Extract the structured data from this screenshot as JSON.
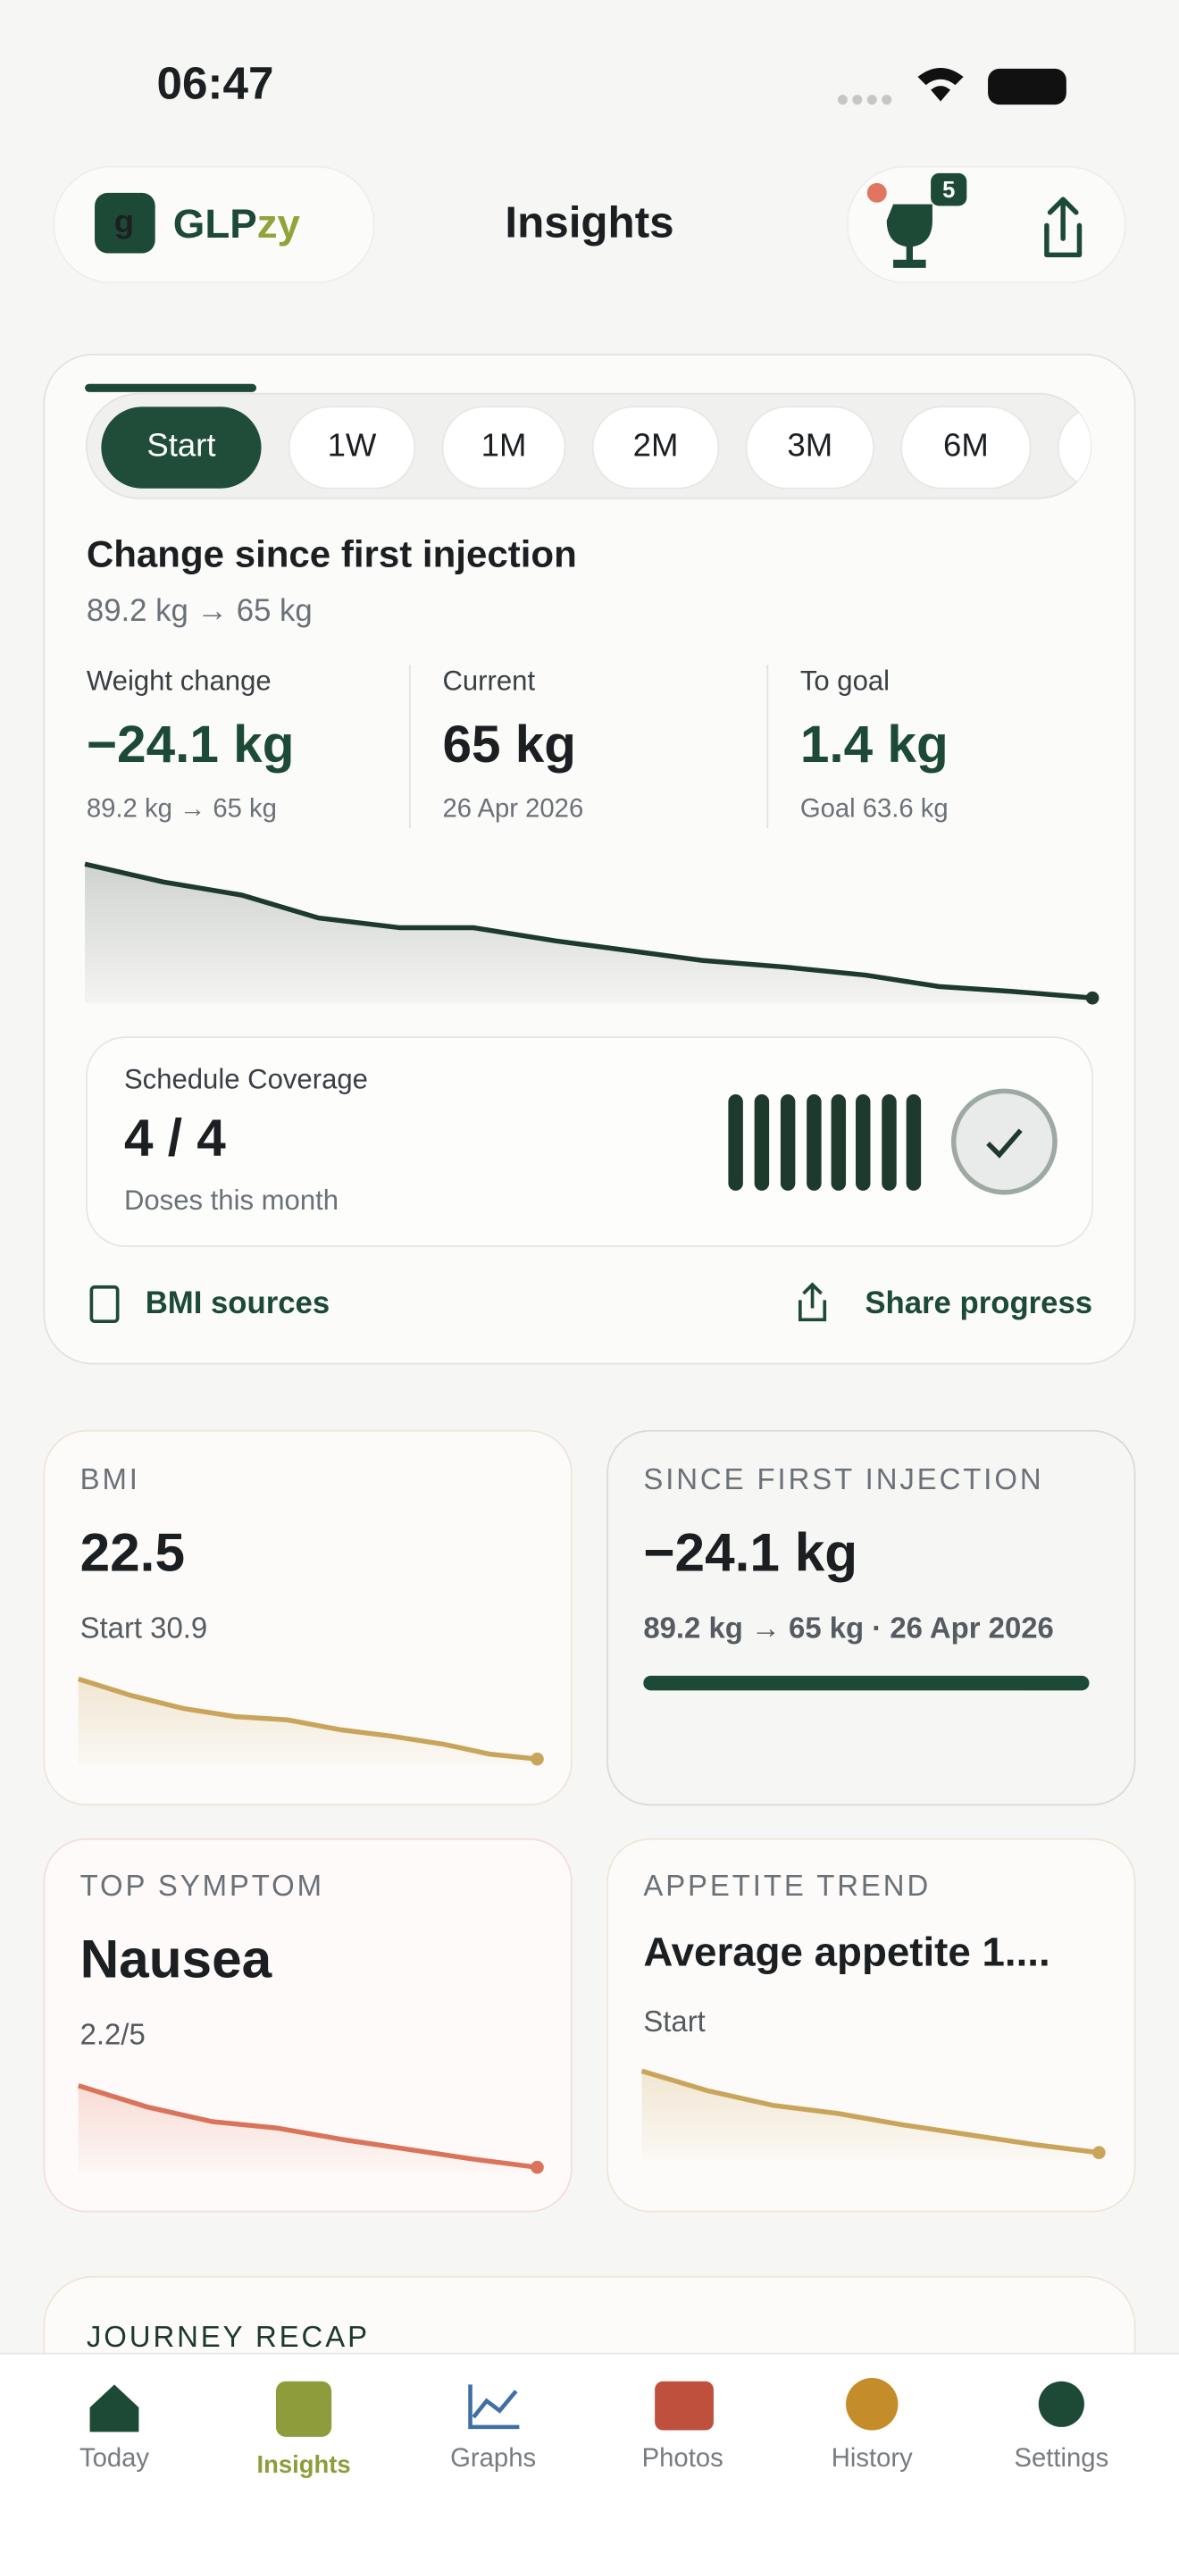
{
  "status_bar": {
    "time": "06:47"
  },
  "header": {
    "brand_prefix": "GLP",
    "brand_suffix": "zy",
    "title": "Insights",
    "badge": "5"
  },
  "range_tabs": [
    "Start",
    "1W",
    "1M",
    "2M",
    "3M",
    "6M"
  ],
  "summary": {
    "title": "Change since first injection",
    "subtitle": "89.2 kg → 65 kg",
    "stats": [
      {
        "label": "Weight change",
        "value": "−24.1 kg",
        "note": "89.2 kg → 65 kg"
      },
      {
        "label": "Current",
        "value": "65 kg",
        "note": "26 Apr 2026"
      },
      {
        "label": "To goal",
        "value": "1.4 kg",
        "note": "Goal 63.6 kg"
      }
    ]
  },
  "schedule": {
    "label": "Schedule Coverage",
    "value": "4 / 4",
    "note": "Doses this month"
  },
  "links": [
    "BMI sources",
    "Share progress"
  ],
  "cards": [
    {
      "label": "BMI",
      "value": "22.5",
      "note": "Start 30.9"
    },
    {
      "label": "SINCE FIRST INJECTION",
      "value": "−24.1 kg",
      "note": "89.2 kg → 65 kg · 26 Apr 2026"
    },
    {
      "label": "TOP SYMPTOM",
      "value": "Nausea",
      "note": "2.2/5"
    },
    {
      "label": "APPETITE TREND",
      "value": "Average appetite 1....",
      "note": "Start"
    }
  ],
  "recap": {
    "title": "JOURNEY RECAP"
  },
  "nav": [
    "Today",
    "Insights",
    "Graphs",
    "Photos",
    "History",
    "Settings"
  ]
}
